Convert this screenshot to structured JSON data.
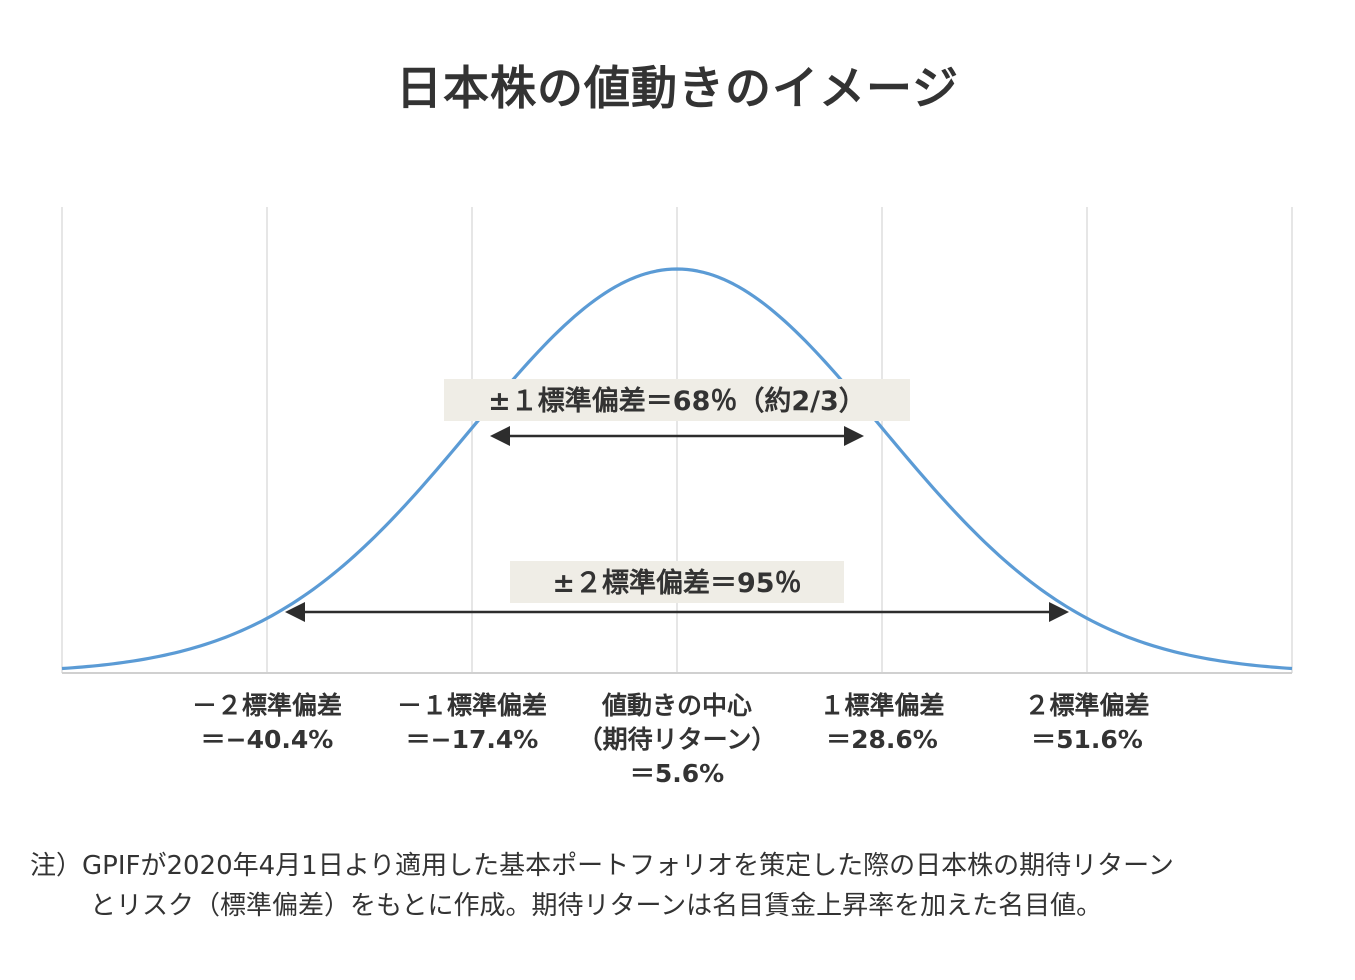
{
  "title": "日本株の値動きのイメージ",
  "chart_data": {
    "type": "line",
    "title": "日本株の値動きのイメージ",
    "distribution": "normal",
    "mean": 5.6,
    "std_dev": 23.0,
    "x_unit": "%",
    "xlim": [
      -63.4,
      74.6
    ],
    "gridlines_x": [
      -63.4,
      -40.4,
      -17.4,
      5.6,
      28.6,
      51.6,
      74.6
    ],
    "grid": true,
    "curve_color": "#5b9bd5",
    "tick_labels": [
      {
        "x": -40.4,
        "lines": [
          "－２標準偏差",
          "＝−40.4%"
        ]
      },
      {
        "x": -17.4,
        "lines": [
          "－１標準偏差",
          "＝−17.4%"
        ]
      },
      {
        "x": 5.6,
        "lines": [
          "値動きの中心",
          "（期待リターン）",
          "＝5.6%"
        ]
      },
      {
        "x": 28.6,
        "lines": [
          "１標準偏差",
          "＝28.6%"
        ]
      },
      {
        "x": 51.6,
        "lines": [
          "２標準偏差",
          "＝51.6%"
        ]
      }
    ],
    "annotations": [
      {
        "label": "±１標準偏差＝68％（約2/3）",
        "from": -17.4,
        "to": 28.6
      },
      {
        "label": "±２標準偏差＝95％",
        "from": -40.4,
        "to": 51.6
      }
    ],
    "annotation_bg": "#efede6"
  },
  "footnote": {
    "line1": "注）GPIFが2020年4月1日より適用した基本ポートフォリオを策定した際の日本株の期待リターン",
    "line2": "とリスク（標準偏差）をもとに作成。期待リターンは名目賃金上昇率を加えた名目値。"
  }
}
